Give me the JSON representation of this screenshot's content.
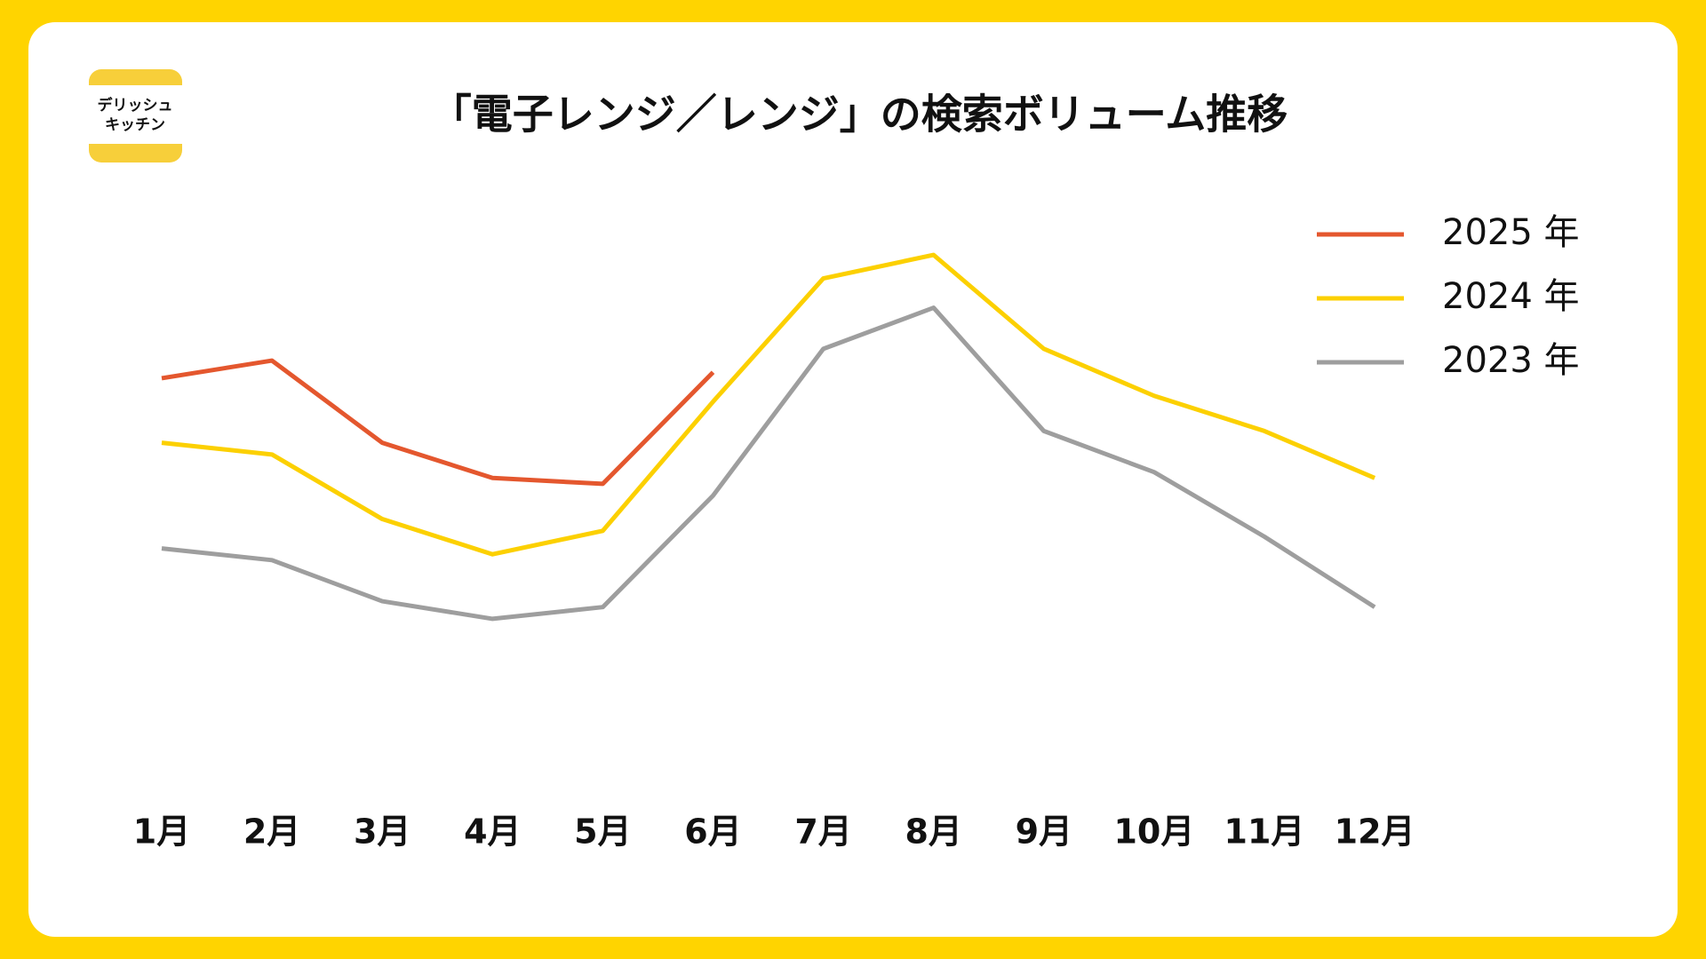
{
  "logo": {
    "lines": [
      "デリッシュ",
      "キッチン"
    ]
  },
  "chart_data": {
    "type": "line",
    "title": "「電子レンジ／レンジ」の検索ボリューム推移",
    "categories": [
      "1月",
      "2月",
      "3月",
      "4月",
      "5月",
      "6月",
      "7月",
      "8月",
      "9月",
      "10月",
      "11月",
      "12月"
    ],
    "series": [
      {
        "name": "2025 年",
        "color": "#e4572e",
        "values": [
          69,
          72,
          58,
          52,
          51,
          70,
          null,
          null,
          null,
          null,
          null,
          null
        ]
      },
      {
        "name": "2024 年",
        "color": "#fcd000",
        "values": [
          58,
          56,
          45,
          39,
          43,
          65,
          86,
          90,
          74,
          66,
          60,
          52
        ]
      },
      {
        "name": "2023 年",
        "color": "#9e9e9e",
        "values": [
          40,
          38,
          31,
          28,
          30,
          49,
          74,
          81,
          60,
          53,
          42,
          30
        ]
      }
    ],
    "ylim": [
      0,
      100
    ],
    "grid": false,
    "legend": "upper right"
  }
}
